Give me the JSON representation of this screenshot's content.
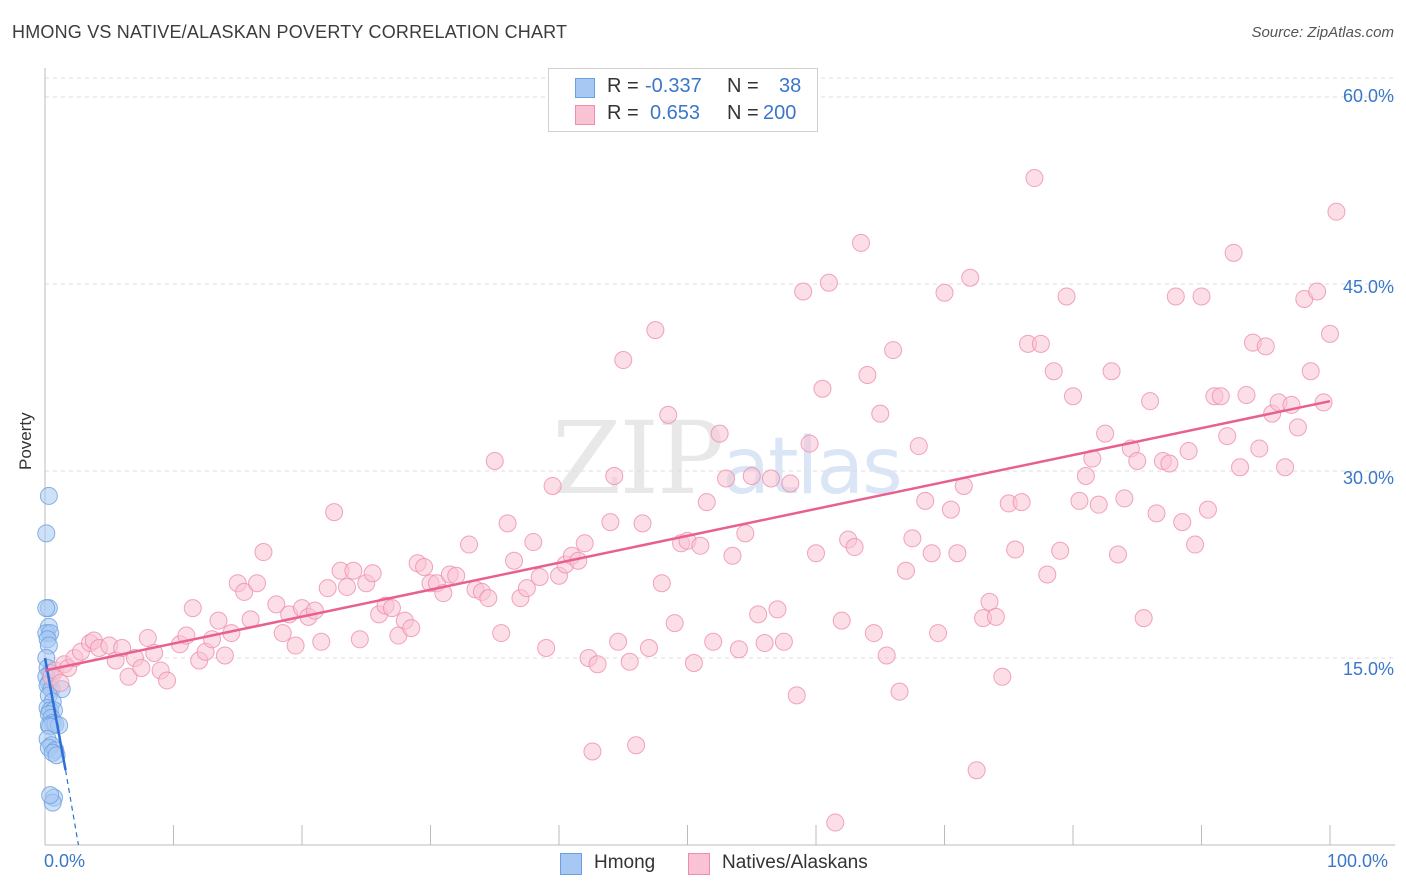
{
  "title": "HMONG VS NATIVE/ALASKAN POVERTY CORRELATION CHART",
  "source": "Source: ZipAtlas.com",
  "watermark": {
    "main": "ZIP",
    "sub": "atlas"
  },
  "legend_top": [
    {
      "r_label": "R =",
      "r_value": "-0.337",
      "n_label": "N =",
      "n_value": "38",
      "color": "#a7c8f2",
      "border": "#6a9fe0"
    },
    {
      "r_label": "R =",
      "r_value": "0.653",
      "n_label": "N =",
      "n_value": "200",
      "color": "#f9c3d4",
      "border": "#ee8db0"
    }
  ],
  "legend_bottom": [
    {
      "label": "Hmong",
      "color": "#a7c8f2",
      "border": "#6a9fe0"
    },
    {
      "label": "Natives/Alaskans",
      "color": "#f9c3d4",
      "border": "#ee8db0"
    }
  ],
  "chart_data": {
    "type": "scatter",
    "title": "HMONG VS NATIVE/ALASKAN POVERTY CORRELATION CHART",
    "xlabel": "",
    "ylabel": "Poverty",
    "xlim": [
      0,
      100
    ],
    "ylim": [
      0,
      63
    ],
    "x_tick_labels": [
      "0.0%",
      "100.0%"
    ],
    "y_ticks": [
      15,
      30,
      45,
      60
    ],
    "y_tick_labels": [
      "15.0%",
      "30.0%",
      "45.0%",
      "60.0%"
    ],
    "series": [
      {
        "name": "Hmong",
        "color": "#a7c8f2",
        "stroke": "#6a9fe0",
        "trend_color": "#2e6fd6",
        "trend": {
          "x": [
            0.0,
            1.6
          ],
          "y": [
            15.0,
            6.0
          ],
          "dashed_to": [
            2.6,
            0.0
          ]
        },
        "points": [
          [
            0.3,
            28
          ],
          [
            0.1,
            25
          ],
          [
            0.3,
            19
          ],
          [
            0.1,
            19
          ],
          [
            0.3,
            17.5
          ],
          [
            0.1,
            17
          ],
          [
            0.4,
            17
          ],
          [
            0.2,
            16.5
          ],
          [
            0.3,
            16
          ],
          [
            0.1,
            15
          ],
          [
            0.2,
            14.2
          ],
          [
            0.4,
            13.8
          ],
          [
            0.1,
            13.5
          ],
          [
            0.3,
            13
          ],
          [
            0.2,
            12.8
          ],
          [
            0.5,
            12.5
          ],
          [
            1.3,
            12.5
          ],
          [
            0.3,
            12
          ],
          [
            0.6,
            11.5
          ],
          [
            0.2,
            11
          ],
          [
            0.4,
            10.8
          ],
          [
            0.7,
            10.8
          ],
          [
            0.3,
            10.5
          ],
          [
            0.5,
            10.2
          ],
          [
            0.6,
            9.8
          ],
          [
            0.3,
            9.6
          ],
          [
            0.8,
            9.7
          ],
          [
            1.1,
            9.6
          ],
          [
            0.4,
            9.5
          ],
          [
            0.2,
            8.5
          ],
          [
            0.5,
            8
          ],
          [
            0.3,
            7.8
          ],
          [
            0.8,
            7.6
          ],
          [
            0.6,
            7.4
          ],
          [
            0.9,
            7.2
          ],
          [
            0.7,
            3.8
          ],
          [
            0.6,
            3.4
          ],
          [
            0.4,
            4
          ]
        ]
      },
      {
        "name": "Natives/Alaskans",
        "color": "#f9c3d4",
        "stroke": "#ee8db0",
        "trend_color": "#e8608f",
        "trend": {
          "x": [
            0.0,
            100.0
          ],
          "y": [
            14.0,
            35.6
          ]
        },
        "points": [
          [
            0.5,
            13.5
          ],
          [
            0.8,
            14
          ],
          [
            1.2,
            13
          ],
          [
            1.5,
            14.5
          ],
          [
            1.8,
            14.2
          ],
          [
            2.3,
            15
          ],
          [
            2.8,
            15.5
          ],
          [
            3.5,
            16.2
          ],
          [
            3.8,
            16.4
          ],
          [
            4.2,
            15.8
          ],
          [
            5,
            16
          ],
          [
            5.5,
            14.8
          ],
          [
            6,
            15.8
          ],
          [
            6.5,
            13.5
          ],
          [
            7,
            15
          ],
          [
            7.5,
            14.2
          ],
          [
            8,
            16.6
          ],
          [
            8.5,
            15.4
          ],
          [
            9,
            14
          ],
          [
            9.5,
            13.2
          ],
          [
            10.5,
            16.1
          ],
          [
            11,
            16.8
          ],
          [
            11.5,
            19
          ],
          [
            12,
            14.8
          ],
          [
            12.5,
            15.5
          ],
          [
            13,
            16.5
          ],
          [
            13.5,
            18
          ],
          [
            14,
            15.2
          ],
          [
            14.5,
            17
          ],
          [
            15,
            21
          ],
          [
            15.5,
            20.3
          ],
          [
            16,
            18.1
          ],
          [
            16.5,
            21
          ],
          [
            17,
            23.5
          ],
          [
            18,
            19.3
          ],
          [
            18.5,
            17
          ],
          [
            19,
            18.5
          ],
          [
            19.5,
            16
          ],
          [
            20,
            19
          ],
          [
            20.5,
            18.3
          ],
          [
            21,
            18.8
          ],
          [
            21.5,
            16.3
          ],
          [
            22,
            20.6
          ],
          [
            22.5,
            26.7
          ],
          [
            23,
            22
          ],
          [
            23.5,
            20.7
          ],
          [
            24,
            22
          ],
          [
            24.5,
            16.5
          ],
          [
            25,
            21
          ],
          [
            25.5,
            21.8
          ],
          [
            26,
            18.5
          ],
          [
            26.5,
            19.2
          ],
          [
            27,
            19
          ],
          [
            27.5,
            16.8
          ],
          [
            28,
            18
          ],
          [
            28.5,
            17.4
          ],
          [
            29,
            22.6
          ],
          [
            29.5,
            22.3
          ],
          [
            30,
            21
          ],
          [
            30.5,
            21
          ],
          [
            31,
            20.2
          ],
          [
            31.5,
            21.7
          ],
          [
            32,
            21.6
          ],
          [
            33,
            24.1
          ],
          [
            33.5,
            20.5
          ],
          [
            34,
            20.3
          ],
          [
            34.5,
            19.8
          ],
          [
            35,
            30.8
          ],
          [
            35.5,
            17
          ],
          [
            36,
            25.8
          ],
          [
            36.5,
            22.8
          ],
          [
            37,
            19.8
          ],
          [
            37.5,
            20.6
          ],
          [
            38,
            24.3
          ],
          [
            38.5,
            21.5
          ],
          [
            39,
            15.8
          ],
          [
            39.5,
            28.8
          ],
          [
            40,
            21.6
          ],
          [
            40.5,
            22.5
          ],
          [
            41,
            23.2
          ],
          [
            41.5,
            22.8
          ],
          [
            42,
            24.2
          ],
          [
            42.3,
            15
          ],
          [
            42.6,
            7.5
          ],
          [
            43,
            14.5
          ],
          [
            44,
            25.9
          ],
          [
            44.3,
            29.6
          ],
          [
            44.6,
            16.3
          ],
          [
            45,
            38.9
          ],
          [
            45.5,
            14.7
          ],
          [
            46,
            8
          ],
          [
            46.5,
            25.8
          ],
          [
            47,
            15.8
          ],
          [
            47.5,
            41.3
          ],
          [
            48,
            21
          ],
          [
            48.5,
            34.5
          ],
          [
            49,
            17.8
          ],
          [
            49.5,
            24.2
          ],
          [
            50,
            24.4
          ],
          [
            50.5,
            14.6
          ],
          [
            51,
            24
          ],
          [
            51.5,
            27.5
          ],
          [
            52,
            16.3
          ],
          [
            52.5,
            33
          ],
          [
            53,
            29.4
          ],
          [
            53.5,
            23.2
          ],
          [
            54,
            15.7
          ],
          [
            54.5,
            25
          ],
          [
            55,
            29.6
          ],
          [
            55.5,
            18.5
          ],
          [
            56,
            16.2
          ],
          [
            56.5,
            29.4
          ],
          [
            57,
            18.9
          ],
          [
            57.5,
            16.3
          ],
          [
            58,
            29
          ],
          [
            58.5,
            12
          ],
          [
            59,
            44.4
          ],
          [
            59.5,
            32.2
          ],
          [
            60,
            23.4
          ],
          [
            60.5,
            36.6
          ],
          [
            61,
            45.1
          ],
          [
            61.5,
            1.8
          ],
          [
            62,
            18
          ],
          [
            62.5,
            24.5
          ],
          [
            63,
            23.9
          ],
          [
            63.5,
            48.3
          ],
          [
            64,
            37.7
          ],
          [
            64.5,
            17
          ],
          [
            65,
            34.6
          ],
          [
            65.5,
            15.2
          ],
          [
            66,
            39.7
          ],
          [
            66.5,
            12.3
          ],
          [
            67,
            22
          ],
          [
            67.5,
            24.6
          ],
          [
            68,
            32
          ],
          [
            68.5,
            27.6
          ],
          [
            69,
            23.4
          ],
          [
            69.5,
            17
          ],
          [
            70,
            44.3
          ],
          [
            70.5,
            26.9
          ],
          [
            71,
            23.4
          ],
          [
            71.5,
            28.8
          ],
          [
            72,
            45.5
          ],
          [
            72.5,
            6
          ],
          [
            73,
            18.2
          ],
          [
            73.5,
            19.5
          ],
          [
            74,
            18.3
          ],
          [
            74.5,
            13.5
          ],
          [
            75,
            27.4
          ],
          [
            75.5,
            23.7
          ],
          [
            76,
            27.5
          ],
          [
            76.5,
            40.2
          ],
          [
            77,
            53.5
          ],
          [
            77.5,
            40.2
          ],
          [
            78,
            21.7
          ],
          [
            78.5,
            38
          ],
          [
            79,
            23.6
          ],
          [
            79.5,
            44
          ],
          [
            80,
            36
          ],
          [
            80.5,
            27.6
          ],
          [
            81,
            29.6
          ],
          [
            81.5,
            31
          ],
          [
            82,
            27.3
          ],
          [
            82.5,
            33
          ],
          [
            83,
            38
          ],
          [
            83.5,
            23.3
          ],
          [
            84,
            27.8
          ],
          [
            84.5,
            31.8
          ],
          [
            85,
            30.8
          ],
          [
            85.5,
            18.2
          ],
          [
            86,
            35.6
          ],
          [
            86.5,
            26.6
          ],
          [
            87,
            30.8
          ],
          [
            87.5,
            30.6
          ],
          [
            88,
            44
          ],
          [
            88.5,
            25.9
          ],
          [
            89,
            31.6
          ],
          [
            89.5,
            24.1
          ],
          [
            90,
            44
          ],
          [
            90.5,
            26.9
          ],
          [
            91,
            36
          ],
          [
            91.5,
            36
          ],
          [
            92,
            32.8
          ],
          [
            92.5,
            47.5
          ],
          [
            93,
            30.3
          ],
          [
            93.5,
            36.1
          ],
          [
            94,
            40.3
          ],
          [
            94.5,
            31.8
          ],
          [
            95,
            40
          ],
          [
            95.5,
            34.6
          ],
          [
            96,
            35.5
          ],
          [
            96.5,
            30.3
          ],
          [
            97,
            35.3
          ],
          [
            97.5,
            33.5
          ],
          [
            98,
            43.8
          ],
          [
            98.5,
            38
          ],
          [
            99,
            44.4
          ],
          [
            99.5,
            35.5
          ],
          [
            100,
            41
          ],
          [
            100.5,
            50.8
          ]
        ]
      }
    ]
  }
}
